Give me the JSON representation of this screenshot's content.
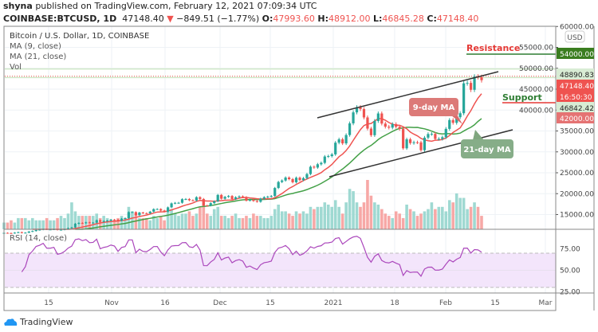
{
  "header": {
    "publisher": "shyna",
    "published_text": "published on TradingView.com, February 12, 2021 07:09:34 UTC",
    "symbol": "COINBASE:BTCUSD, 1D",
    "last": "47148.40",
    "change": "−849.51 (−1.77%)",
    "o_label": "O:",
    "o": "47993.60",
    "h_label": "H:",
    "h": "48912.00",
    "l_label": "L:",
    "l": "46845.28",
    "c_label": "C:",
    "c": "47148.40",
    "colors": {
      "down": "#ef5350",
      "up": "#26a69a"
    }
  },
  "legend": {
    "title": "Bitcoin / U.S. Dollar, 1D, COINBASE",
    "ma9": "MA (9, close)",
    "ma21": "MA (21, close)",
    "vol": "Vol",
    "rsi": "RSI (14, close)"
  },
  "annotations": {
    "resistance": "Resistance",
    "support": "Support",
    "ma9_label": "9-day MA",
    "ma21_label": "21-day MA"
  },
  "footer": {
    "logo": "TradingView"
  },
  "chart_data": {
    "type": "candlestick",
    "currency": "USD",
    "y_ticks": [
      60000,
      55000,
      50000,
      45000,
      40000,
      35000,
      30000,
      25000,
      20000,
      15000
    ],
    "price_labels": [
      {
        "text": "54000.00",
        "color": "#3a7d1f"
      },
      {
        "text": "48890.83",
        "color": "#d8ecd4"
      },
      {
        "text": "47148.40",
        "color": "#ef5350"
      },
      {
        "text": "16:50:30",
        "color": "#ef5350"
      },
      {
        "text": "46842.42",
        "color": "#d8ecd4"
      },
      {
        "text": "42000.00",
        "color": "#e57373"
      }
    ],
    "x_ticks": [
      "15",
      "Nov",
      "16",
      "Dec",
      "15",
      "2021",
      "18",
      "Feb",
      "15",
      "Mar"
    ],
    "rsi_ticks": [
      "75.00",
      "50.00",
      "25.00"
    ],
    "rsi_bands": [
      30,
      70
    ],
    "levels": {
      "resistance": 54000,
      "support": 42000,
      "high_line": 48890.83,
      "low_line": 46842.42,
      "last": 47148.4
    },
    "start": "2020-10-01",
    "closes": [
      10620,
      10570,
      10540,
      10670,
      10790,
      10600,
      10670,
      10930,
      11060,
      11300,
      11380,
      11540,
      11430,
      11430,
      11500,
      11320,
      11370,
      11500,
      11750,
      11920,
      12820,
      12990,
      12930,
      13130,
      13030,
      13070,
      13650,
      13280,
      13460,
      13560,
      13800,
      13760,
      13550,
      14030,
      14150,
      15590,
      15590,
      14840,
      15480,
      15330,
      15310,
      15700,
      16300,
      16320,
      15960,
      15710,
      16730,
      17680,
      17800,
      17820,
      18680,
      18720,
      18420,
      18370,
      19160,
      18730,
      17150,
      17140,
      17730,
      18180,
      19700,
      18790,
      19230,
      19450,
      18700,
      19150,
      19360,
      19170,
      18330,
      18550,
      18260,
      18050,
      18810,
      19170,
      19280,
      19440,
      21360,
      22800,
      23150,
      23860,
      23480,
      22730,
      23820,
      23250,
      23720,
      24690,
      26440,
      26250,
      27040,
      27370,
      28890,
      28990,
      29400,
      32200,
      33000,
      32030,
      34030,
      36820,
      39450,
      40670,
      40240,
      38240,
      35570,
      33990,
      37390,
      39190,
      36770,
      36020,
      35800,
      36630,
      36000,
      35500,
      30850,
      33000,
      32100,
      32290,
      32270,
      30400,
      33400,
      34270,
      34300,
      33100,
      33110,
      33500,
      35500,
      37620,
      36950,
      38300,
      39240,
      46400,
      46500,
      44850,
      47990,
      47900,
      47148.4
    ],
    "volume": [
      3,
      3,
      4,
      3,
      5,
      5,
      5,
      4,
      5,
      4,
      4,
      4,
      5,
      4,
      4,
      5,
      6,
      5,
      7,
      12,
      8,
      6,
      6,
      6,
      6,
      6,
      7,
      5,
      6,
      5,
      4,
      4,
      5,
      6,
      5,
      10,
      8,
      7,
      5,
      5,
      5,
      4,
      6,
      5,
      6,
      4,
      8,
      9,
      7,
      6,
      7,
      7,
      8,
      6,
      7,
      10,
      13,
      7,
      6,
      9,
      10,
      6,
      6,
      5,
      6,
      7,
      5,
      5,
      6,
      5,
      7,
      6,
      6,
      5,
      5,
      6,
      9,
      11,
      8,
      8,
      7,
      6,
      8,
      7,
      8,
      7,
      10,
      9,
      10,
      10,
      12,
      11,
      10,
      13,
      10,
      7,
      12,
      18,
      17,
      12,
      10,
      12,
      22,
      15,
      12,
      11,
      9,
      7,
      6,
      5,
      8,
      7,
      5,
      11,
      9,
      8,
      6,
      7,
      8,
      9,
      12,
      9,
      10,
      10,
      8,
      13,
      12,
      16,
      14,
      14,
      9,
      10,
      12,
      10,
      6
    ]
  }
}
